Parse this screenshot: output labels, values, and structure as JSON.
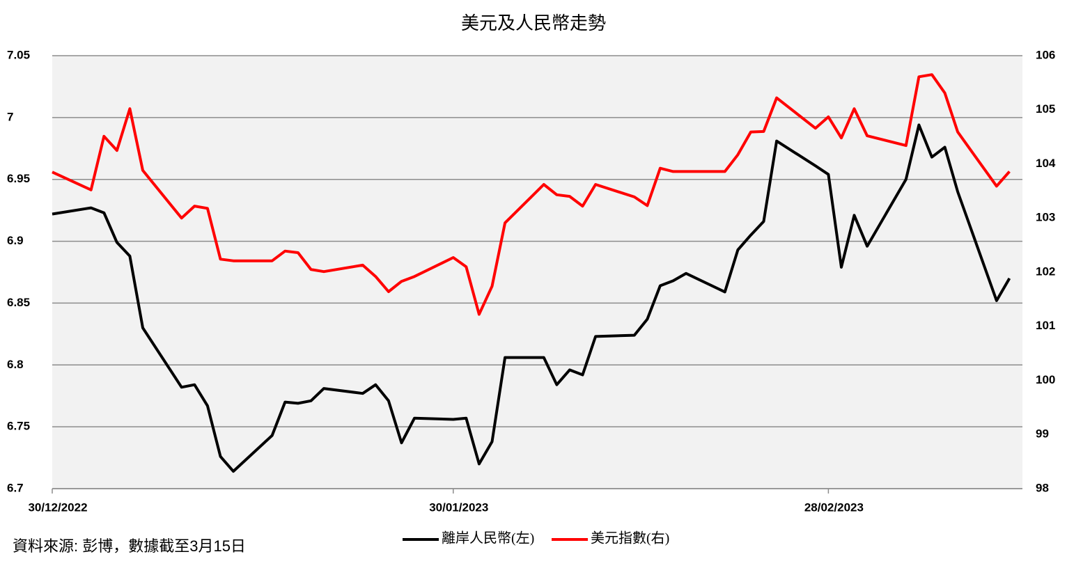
{
  "chart_data": {
    "type": "line",
    "title": "美元及人民幣走勢",
    "note": "資料來源: 彭博，數據截至3月15日",
    "x": [
      "30/12/2022",
      "02/01/2023",
      "03/01/2023",
      "04/01/2023",
      "05/01/2023",
      "06/01/2023",
      "09/01/2023",
      "10/01/2023",
      "11/01/2023",
      "12/01/2023",
      "13/01/2023",
      "16/01/2023",
      "17/01/2023",
      "18/01/2023",
      "19/01/2023",
      "20/01/2023",
      "23/01/2023",
      "24/01/2023",
      "25/01/2023",
      "26/01/2023",
      "27/01/2023",
      "30/01/2023",
      "31/01/2023",
      "01/02/2023",
      "02/02/2023",
      "03/02/2023",
      "06/02/2023",
      "07/02/2023",
      "08/02/2023",
      "09/02/2023",
      "10/02/2023",
      "13/02/2023",
      "14/02/2023",
      "15/02/2023",
      "16/02/2023",
      "17/02/2023",
      "20/02/2023",
      "21/02/2023",
      "22/02/2023",
      "23/02/2023",
      "24/02/2023",
      "27/02/2023",
      "28/02/2023",
      "01/03/2023",
      "02/03/2023",
      "03/03/2023",
      "06/03/2023",
      "07/03/2023",
      "08/03/2023",
      "09/03/2023",
      "10/03/2023",
      "13/03/2023",
      "14/03/2023"
    ],
    "series": [
      {
        "name": "離岸人民幣(左)",
        "color": "#000000",
        "values": [
          6.922,
          6.927,
          6.923,
          6.899,
          6.888,
          6.83,
          6.782,
          6.784,
          6.767,
          6.726,
          6.714,
          6.743,
          6.77,
          6.769,
          6.771,
          6.781,
          6.777,
          6.784,
          6.771,
          6.737,
          6.757,
          6.756,
          6.757,
          6.72,
          6.738,
          6.806,
          6.806,
          6.784,
          6.796,
          6.792,
          6.823,
          6.824,
          6.837,
          6.864,
          6.868,
          6.874,
          6.859,
          6.893,
          6.905,
          6.916,
          6.981,
          6.961,
          6.954,
          6.879,
          6.921,
          6.896,
          6.95,
          6.994,
          6.968,
          6.976,
          6.94,
          6.852,
          6.87
        ]
      },
      {
        "name": "美元指數(右)",
        "color": "#ff0000",
        "axis": "y2",
        "values": [
          103.85,
          103.52,
          104.51,
          104.25,
          105.02,
          103.88,
          103.0,
          103.22,
          103.18,
          102.24,
          102.21,
          102.21,
          102.39,
          102.36,
          102.05,
          102.01,
          102.13,
          101.92,
          101.64,
          101.83,
          101.92,
          102.27,
          102.1,
          101.22,
          101.74,
          102.91,
          103.62,
          103.43,
          103.4,
          103.22,
          103.62,
          103.39,
          103.23,
          103.92,
          103.86,
          103.86,
          103.86,
          104.17,
          104.59,
          104.6,
          105.22,
          104.66,
          104.87,
          104.48,
          105.02,
          104.52,
          104.34,
          105.61,
          105.65,
          105.31,
          104.59,
          103.59,
          103.86
        ]
      }
    ],
    "xlim": [
      "30/12/2022",
      "15/03/2023"
    ],
    "xticks": [
      "30/12/2022",
      "30/01/2023",
      "28/02/2023"
    ],
    "ylim": [
      6.7,
      7.05
    ],
    "yticks": [
      6.7,
      6.75,
      6.8,
      6.85,
      6.9,
      6.95,
      7,
      7.05
    ],
    "y2lim": [
      98,
      106
    ],
    "y2ticks": [
      98,
      99,
      100,
      101,
      102,
      103,
      104,
      105,
      106
    ],
    "grid": true,
    "legend": "bottom"
  }
}
